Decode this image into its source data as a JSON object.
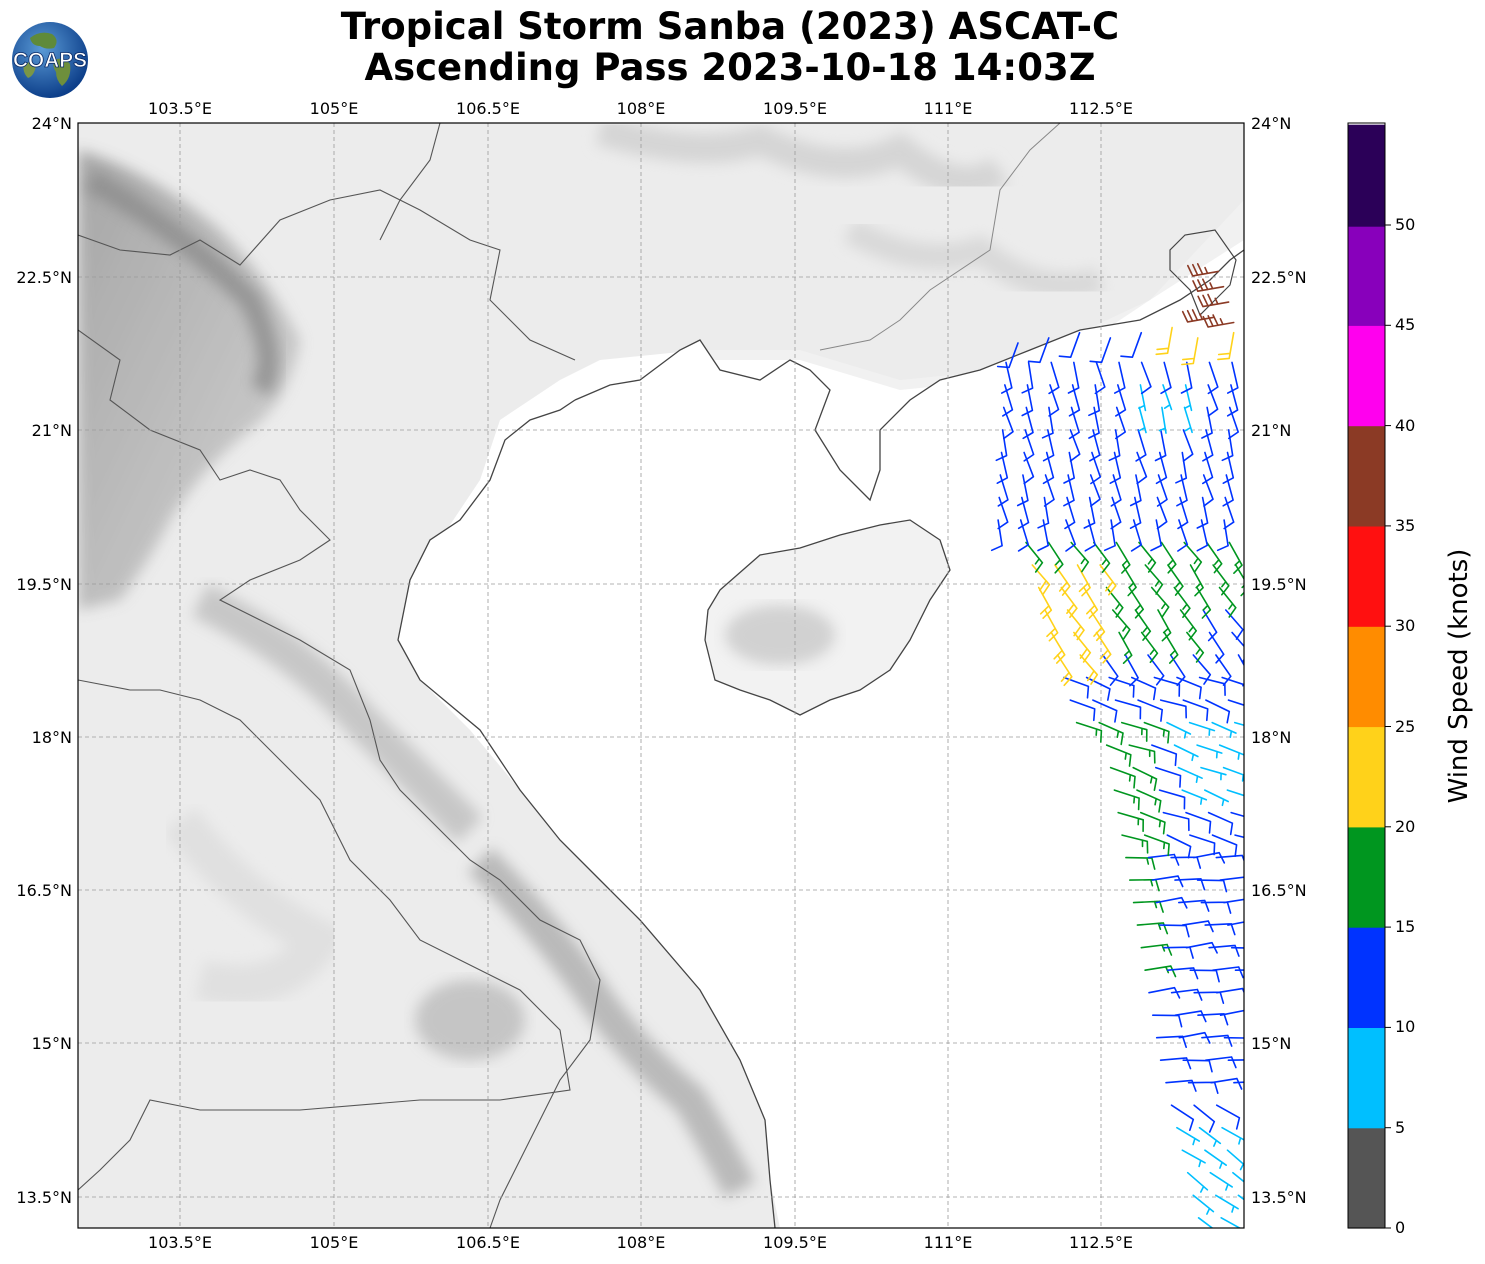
{
  "header": {
    "title_line1": "Tropical Storm Sanba (2023) ASCAT-C",
    "title_line2": "Ascending Pass 2023-10-18 14:03Z",
    "logo_text": "COAPS"
  },
  "map": {
    "lon_range": [
      102.35,
      113.7
    ],
    "lat_range": [
      13.2,
      24.0
    ],
    "lon_ticks": [
      "103.5°E",
      "105°E",
      "106.5°E",
      "108°E",
      "109.5°E",
      "111°E",
      "112.5°E"
    ],
    "lat_ticks": [
      "24°N",
      "22.5°N",
      "21°N",
      "19.5°N",
      "18°N",
      "16.5°N",
      "15°N",
      "13.5°N"
    ],
    "background": "grayscale terrain",
    "grid": true
  },
  "colorbar": {
    "label": "Wind Speed (knots)",
    "tick_labels": [
      "0",
      "5",
      "10",
      "15",
      "20",
      "25",
      "30",
      "35",
      "40",
      "45",
      "50"
    ],
    "colors": [
      "#555555",
      "#00bfff",
      "#0033ff",
      "#00961f",
      "#ffd21a",
      "#ff8c00",
      "#ff1010",
      "#8b3a25",
      "#ff00ee",
      "#8800bb",
      "#2b0058"
    ]
  },
  "chart_data": {
    "type": "wind_barbs",
    "units": "knots",
    "bands": [
      {
        "lat_range": [
          22.0,
          22.6
        ],
        "typical_speed": 37,
        "color_band": "35-40"
      },
      {
        "lat_range": [
          21.9,
          22.0
        ],
        "typical_speed": 22,
        "color_band": "20-25"
      },
      {
        "lat_range": [
          21.1,
          21.9
        ],
        "typical_speed": 12,
        "color_band": "10-15"
      },
      {
        "lat_range": [
          20.0,
          21.1
        ],
        "typical_speed": 13,
        "color_band": "10-15"
      },
      {
        "lat_range": [
          19.0,
          20.0
        ],
        "typical_speed": 17,
        "color_band": "15-20"
      },
      {
        "lat_range": [
          18.5,
          19.6
        ],
        "typical_speed": 22,
        "color_band": "20-25"
      },
      {
        "lat_range": [
          17.2,
          18.0
        ],
        "typical_speed": 8,
        "color_band": "5-10"
      },
      {
        "lat_range": [
          14.5,
          18.2
        ],
        "typical_speed": 13,
        "color_band": "10-15"
      },
      {
        "lat_range": [
          15.0,
          17.0
        ],
        "typical_speed": 17,
        "color_band": "15-20"
      },
      {
        "lat_range": [
          13.2,
          14.2
        ],
        "typical_speed": 8,
        "color_band": "5-10"
      }
    ]
  }
}
